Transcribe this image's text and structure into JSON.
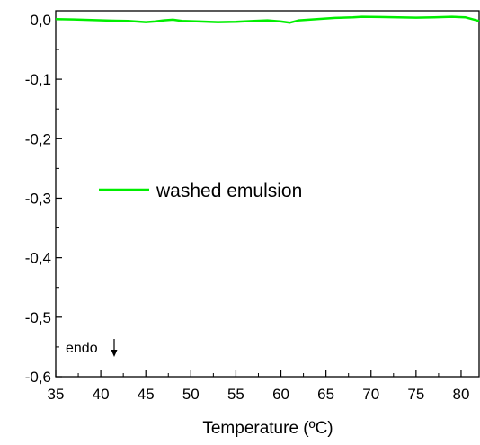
{
  "chart_data": {
    "type": "line",
    "title": "",
    "xlabel": "Temperature (ºC)",
    "ylabel": "",
    "xlim": [
      35,
      82
    ],
    "ylim": [
      -0.6,
      0.015
    ],
    "x_ticks": [
      35,
      40,
      45,
      50,
      55,
      60,
      65,
      70,
      75,
      80
    ],
    "x_tick_labels": [
      "35",
      "40",
      "45",
      "50",
      "55",
      "60",
      "65",
      "70",
      "75",
      "80"
    ],
    "y_ticks": [
      0.0,
      -0.1,
      -0.2,
      -0.3,
      -0.4,
      -0.5,
      -0.6
    ],
    "y_tick_labels": [
      "0,0",
      "-0,1",
      "-0,2",
      "-0,3",
      "-0,4",
      "-0,5",
      "-0,6"
    ],
    "grid": false,
    "legend_position": "center-left",
    "series": [
      {
        "name": "washed emulsion",
        "color": "#00ee00",
        "x": [
          35,
          37,
          39,
          41,
          43,
          45,
          46,
          47,
          48,
          49,
          51,
          53,
          55,
          57,
          58.5,
          60,
          61,
          62,
          64,
          66,
          68,
          69,
          71,
          73,
          75,
          77,
          79,
          80.5,
          82
        ],
        "y": [
          0.001,
          0.0005,
          -0.0005,
          -0.0015,
          -0.002,
          -0.004,
          -0.003,
          -0.001,
          0.0,
          -0.002,
          -0.003,
          -0.004,
          -0.0035,
          -0.002,
          -0.001,
          -0.003,
          -0.005,
          -0.001,
          0.001,
          0.003,
          0.004,
          0.005,
          0.0045,
          0.004,
          0.0035,
          0.004,
          0.005,
          0.004,
          -0.002
        ]
      }
    ],
    "annotation": {
      "text": "endo",
      "arrow": "down"
    }
  }
}
